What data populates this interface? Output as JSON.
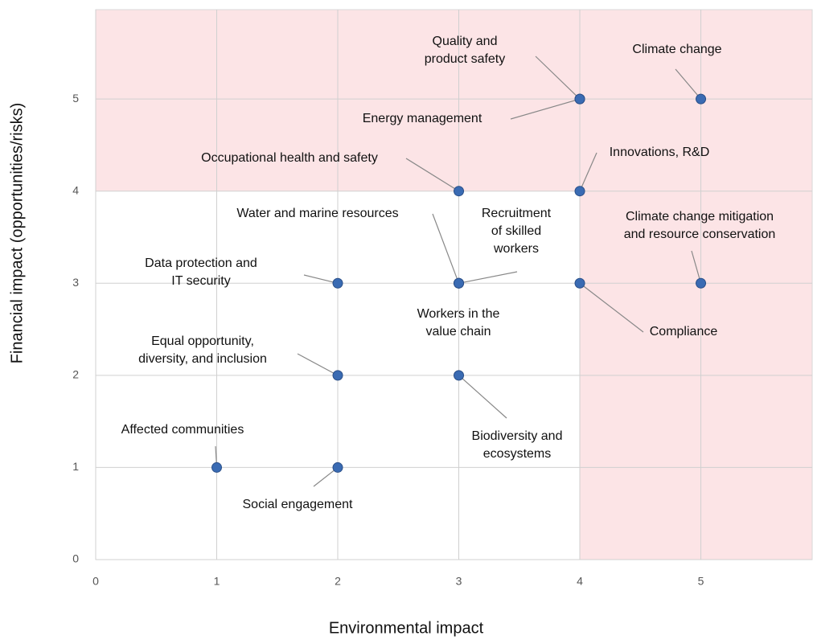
{
  "chart_data": {
    "type": "scatter",
    "x_label": "Environmental impact",
    "y_label": "Financial impact (opportunities/risks)",
    "xlim": [
      0,
      5.92
    ],
    "ylim": [
      0,
      5.97
    ],
    "xticks": [
      0,
      1,
      2,
      3,
      4,
      5
    ],
    "yticks": [
      0,
      1,
      2,
      3,
      4,
      5
    ],
    "grid": true,
    "color": "#3a6bb3",
    "shade_color": "#fce4e6",
    "shade_above_y": 4,
    "shade_right_of_x": 4,
    "labels": [
      [
        "Quality and",
        "product safety"
      ],
      [
        "Climate change"
      ],
      [
        "Energy management"
      ],
      [
        "Occupational health and safety"
      ],
      [
        "Innovations, R&D"
      ],
      [
        "Water and marine resources"
      ],
      [
        "Recruitment",
        "of skilled",
        "workers"
      ],
      [
        "Climate change mitigation",
        "and resource conservation"
      ],
      [
        "Data protection and",
        "IT security"
      ],
      [
        "Workers in the",
        "value chain"
      ],
      [
        "Compliance"
      ],
      [
        "Equal opportunity,",
        "diversity, and inclusion"
      ],
      [
        "Biodiversity and",
        "ecosystems"
      ],
      [
        "Affected communities"
      ],
      [
        "Social engagement"
      ]
    ],
    "x": [
      4,
      5,
      4,
      3,
      4,
      3,
      3,
      5,
      2,
      3,
      4,
      2,
      3,
      1,
      2
    ],
    "y": [
      5,
      5,
      5,
      4,
      4,
      3,
      3,
      3,
      3,
      3,
      3,
      2,
      2,
      1,
      1
    ]
  }
}
